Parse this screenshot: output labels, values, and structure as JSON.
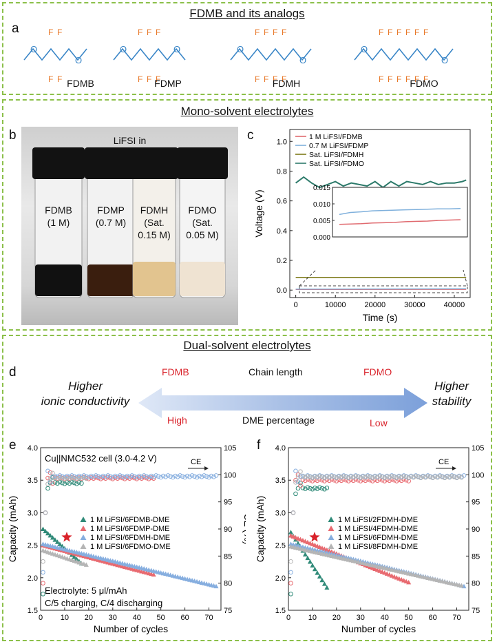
{
  "colors": {
    "border": "#8cc04a",
    "carbon": "#3a86c7",
    "fluorine": "#e8792a",
    "highlight": "#d9222a"
  },
  "section1": {
    "title": "FDMB and its analogs",
    "letter": "a",
    "molecules": [
      {
        "name": "FDMB",
        "f_top": "F F",
        "f_bottom": "F F"
      },
      {
        "name": "FDMP",
        "f_top": "F F F",
        "f_bottom": "F F F"
      },
      {
        "name": "FDMH",
        "f_top": "F F F F",
        "f_bottom": "F F F F"
      },
      {
        "name": "FDMO",
        "f_top": "F F F F F F",
        "f_bottom": "F F F F F F"
      }
    ]
  },
  "section2": {
    "title": "Mono-solvent electrolytes",
    "panel_b": {
      "letter": "b",
      "header": "LiFSI in",
      "vials": [
        {
          "line1": "FDMB",
          "line2": "(1 M)",
          "line3": ""
        },
        {
          "line1": "FDMP",
          "line2": "(0.7 M)",
          "line3": ""
        },
        {
          "line1": "FDMH",
          "line2": "(Sat.",
          "line3": "0.15 M)"
        },
        {
          "line1": "FDMO",
          "line2": "(Sat.",
          "line3": "0.05 M)"
        }
      ]
    },
    "panel_c": {
      "letter": "c",
      "chart_data": {
        "type": "line",
        "xlabel": "Time (s)",
        "ylabel": "Voltage (V)",
        "xlim": [
          -1500,
          44000
        ],
        "ylim": [
          -0.05,
          1.08
        ],
        "xticks": [
          "0",
          "10000",
          "20000",
          "30000",
          "40000"
        ],
        "yticks": [
          "0.0",
          "0.2",
          "0.4",
          "0.6",
          "0.8",
          "1.0"
        ],
        "series": [
          {
            "name": "1 M LiFSI/FDMB",
            "color": "#e06a6f",
            "x": [
              0,
              43000
            ],
            "y": [
              0.004,
              0.005
            ]
          },
          {
            "name": "0.7 M LiFSI/FDMP",
            "color": "#7fb0dc",
            "x": [
              0,
              43000
            ],
            "y": [
              0.007,
              0.009
            ]
          },
          {
            "name": "Sat. LiFSI/FDMH",
            "color": "#7d7a18",
            "x": [
              0,
              43000
            ],
            "y": [
              0.085,
              0.085
            ]
          },
          {
            "name": "Sat. LiFSI/FDMO",
            "color": "#2c7a6a",
            "x": [
              0,
              2000,
              4000,
              6000,
              8000,
              10000,
              12000,
              14000,
              16000,
              18000,
              20000,
              22000,
              24000,
              26000,
              28000,
              30000,
              32000,
              34000,
              36000,
              38000,
              40000,
              42000,
              43000
            ],
            "y": [
              0.72,
              0.76,
              0.72,
              0.69,
              0.71,
              0.73,
              0.7,
              0.72,
              0.71,
              0.7,
              0.73,
              0.69,
              0.73,
              0.7,
              0.73,
              0.72,
              0.71,
              0.73,
              0.71,
              0.72,
              0.72,
              0.73,
              0.74
            ]
          }
        ],
        "inset": {
          "ylim": [
            0,
            0.015
          ],
          "yticks": [
            "0.000",
            "0.005",
            "0.010",
            "0.015"
          ],
          "series": [
            {
              "name": "1 M LiFSI/FDMB",
              "color": "#e06a6f",
              "y": [
                0.0038,
                0.0039,
                0.004,
                0.0042,
                0.0043,
                0.0044,
                0.0046,
                0.0047,
                0.0048,
                0.005,
                0.0051,
                0.0052
              ]
            },
            {
              "name": "0.7 M LiFSI/FDMP",
              "color": "#7fb0dc",
              "y": [
                0.0068,
                0.0074,
                0.0076,
                0.0079,
                0.008,
                0.0081,
                0.0082,
                0.0083,
                0.0084,
                0.0085,
                0.0085,
                0.0086
              ]
            }
          ]
        }
      }
    }
  },
  "section3": {
    "title": "Dual-solvent electrolytes",
    "panel_d": {
      "letter": "d",
      "left_top": "FDMB",
      "center_top": "Chain length",
      "right_top": "FDMO",
      "left_bottom": "High",
      "center_bottom": "DME percentage",
      "right_bottom": "Low",
      "left_line1": "Higher",
      "left_line2": "ionic conductivity",
      "right_line1": "Higher",
      "right_line2": "stability"
    },
    "panel_e": {
      "letter": "e",
      "annotation_top": "Cu||NMC532 cell (3.0-4.2 V)",
      "annotation_bottom1": "Electrolyte: 5 μl/mAh",
      "annotation_bottom2": "C/5 charging, C/4 discharging",
      "ce_label": "CE",
      "chart_data": {
        "type": "scatter",
        "xlabel": "Number of cycles",
        "ylabel": "Capacity (mAh)",
        "y2label": "CE (%)",
        "xlim": [
          0,
          75
        ],
        "ylim": [
          1.5,
          4.0
        ],
        "y2lim": [
          75,
          105
        ],
        "xticks": [
          "0",
          "10",
          "20",
          "30",
          "40",
          "50",
          "60",
          "70"
        ],
        "yticks": [
          "1.5",
          "2.0",
          "2.5",
          "3.0",
          "3.5",
          "4.0"
        ],
        "y2ticks": [
          "75",
          "80",
          "85",
          "90",
          "95",
          "100",
          "105"
        ],
        "series": [
          {
            "name": "1 M LiFSI/6FDMB-DME",
            "color": "#2f8a78",
            "cycles": 17,
            "cap_start": 2.75,
            "cap_end": 2.22,
            "ce_end": 98.5
          },
          {
            "name": "1 M LiFSI/6FDMP-DME",
            "color": "#e86a70",
            "cycles": 47,
            "cap_start": 2.5,
            "cap_end": 2.05,
            "ce_end": 99.4
          },
          {
            "name": "1 M LiFSI/6FDMH-DME",
            "color": "#86aedf",
            "cycles": 73,
            "cap_start": 2.52,
            "cap_end": 1.87,
            "ce_end": 99.7
          },
          {
            "name": "1 M LiFSI/6FDMO-DME",
            "color": "#b5b5b5",
            "cycles": 19,
            "cap_start": 2.42,
            "cap_end": 2.2,
            "ce_end": 99.3
          }
        ],
        "star_series": "1 M LiFSI/6FDMH-DME"
      }
    },
    "panel_f": {
      "letter": "f",
      "ce_label": "CE",
      "chart_data": {
        "type": "scatter",
        "xlabel": "Number of cycles",
        "ylabel": "Capacity (mAh)",
        "y2label": "CE (%)",
        "xlim": [
          0,
          75
        ],
        "ylim": [
          1.5,
          4.0
        ],
        "y2lim": [
          75,
          105
        ],
        "xticks": [
          "0",
          "10",
          "20",
          "30",
          "40",
          "50",
          "60",
          "70"
        ],
        "yticks": [
          "1.5",
          "2.0",
          "2.5",
          "3.0",
          "3.5",
          "4.0"
        ],
        "y2ticks": [
          "75",
          "80",
          "85",
          "90",
          "95",
          "100",
          "105"
        ],
        "series": [
          {
            "name": "1 M LiFSI/2FDMH-DME",
            "color": "#2f8a78",
            "cycles": 16,
            "cap_start": 2.7,
            "cap_end": 1.85,
            "ce_end": 97.5
          },
          {
            "name": "1 M LiFSI/4FDMH-DME",
            "color": "#e86a70",
            "cycles": 50,
            "cap_start": 2.65,
            "cap_end": 1.93,
            "ce_end": 99.0
          },
          {
            "name": "1 M LiFSI/6FDMH-DME",
            "color": "#86aedf",
            "cycles": 73,
            "cap_start": 2.52,
            "cap_end": 1.87,
            "ce_end": 99.7
          },
          {
            "name": "1 M LiFSI/8FDMH-DME",
            "color": "#b5b5b5",
            "cycles": 72,
            "cap_start": 2.48,
            "cap_end": 1.88,
            "ce_end": 99.6
          }
        ],
        "star_series": "1 M LiFSI/6FDMH-DME"
      }
    }
  }
}
